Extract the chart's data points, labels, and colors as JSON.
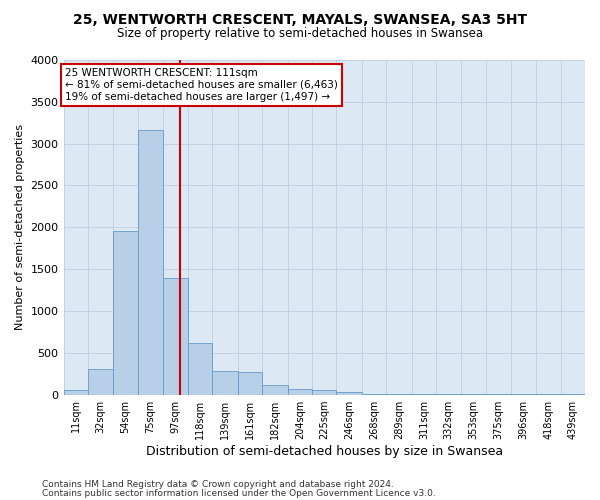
{
  "title": "25, WENTWORTH CRESCENT, MAYALS, SWANSEA, SA3 5HT",
  "subtitle": "Size of property relative to semi-detached houses in Swansea",
  "xlabel": "Distribution of semi-detached houses by size in Swansea",
  "ylabel": "Number of semi-detached properties",
  "footer_line1": "Contains HM Land Registry data © Crown copyright and database right 2024.",
  "footer_line2": "Contains public sector information licensed under the Open Government Licence v3.0.",
  "annotation_line1": "25 WENTWORTH CRESCENT: 111sqm",
  "annotation_line2": "← 81% of semi-detached houses are smaller (6,463)",
  "annotation_line3": "19% of semi-detached houses are larger (1,497) →",
  "property_size": 111,
  "bar_color": "#b8cfe8",
  "bar_edge_color": "#6699cc",
  "vline_color": "#cc0000",
  "annotation_box_color": "#ffffff",
  "annotation_box_edge": "#cc0000",
  "bg_color": "#dde8f5",
  "categories": [
    "11sqm",
    "32sqm",
    "54sqm",
    "75sqm",
    "97sqm",
    "118sqm",
    "139sqm",
    "161sqm",
    "182sqm",
    "204sqm",
    "225sqm",
    "246sqm",
    "268sqm",
    "289sqm",
    "311sqm",
    "332sqm",
    "353sqm",
    "375sqm",
    "396sqm",
    "418sqm",
    "439sqm"
  ],
  "values": [
    50,
    300,
    1960,
    3160,
    1390,
    620,
    280,
    275,
    110,
    65,
    50,
    25,
    10,
    5,
    2,
    2,
    1,
    1,
    1,
    1,
    1
  ],
  "bin_edges": [
    11,
    32,
    54,
    75,
    97,
    118,
    139,
    161,
    182,
    204,
    225,
    246,
    268,
    289,
    311,
    332,
    353,
    375,
    396,
    418,
    439,
    460
  ],
  "ylim": [
    0,
    4000
  ],
  "yticks": [
    0,
    500,
    1000,
    1500,
    2000,
    2500,
    3000,
    3500,
    4000
  ]
}
